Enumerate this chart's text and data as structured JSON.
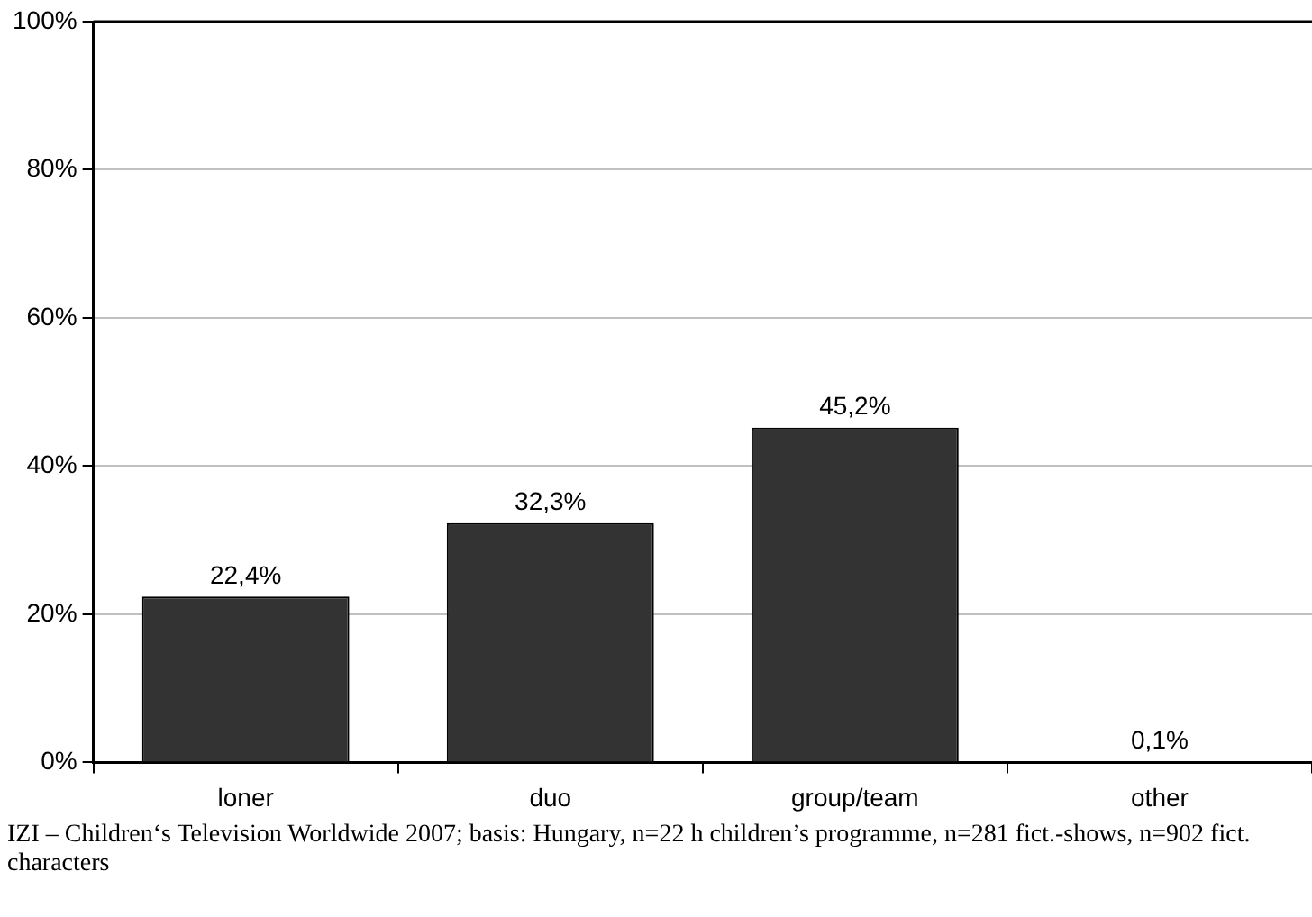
{
  "chart_data": {
    "type": "bar",
    "categories": [
      "loner",
      "duo",
      "group/team",
      "other"
    ],
    "values": [
      22.4,
      32.3,
      45.2,
      0.1
    ],
    "value_labels": [
      "22,4%",
      "32,3%",
      "45,2%",
      "0,1%"
    ],
    "color": "#333333",
    "ylim": [
      0,
      100
    ],
    "yticks": [
      {
        "value": 0,
        "label": "0%"
      },
      {
        "value": 20,
        "label": "20%"
      },
      {
        "value": 40,
        "label": "40%"
      },
      {
        "value": 60,
        "label": "60%"
      },
      {
        "value": 80,
        "label": "80%"
      },
      {
        "value": 100,
        "label": "100%"
      }
    ],
    "grid": "y",
    "legend": false,
    "annotations": [
      "IZI – Children‘s Television Worldwide 2007; basis: Hungary, n=22 h children’s programme, n=281 fict.-shows, n=902 fict. characters"
    ]
  }
}
